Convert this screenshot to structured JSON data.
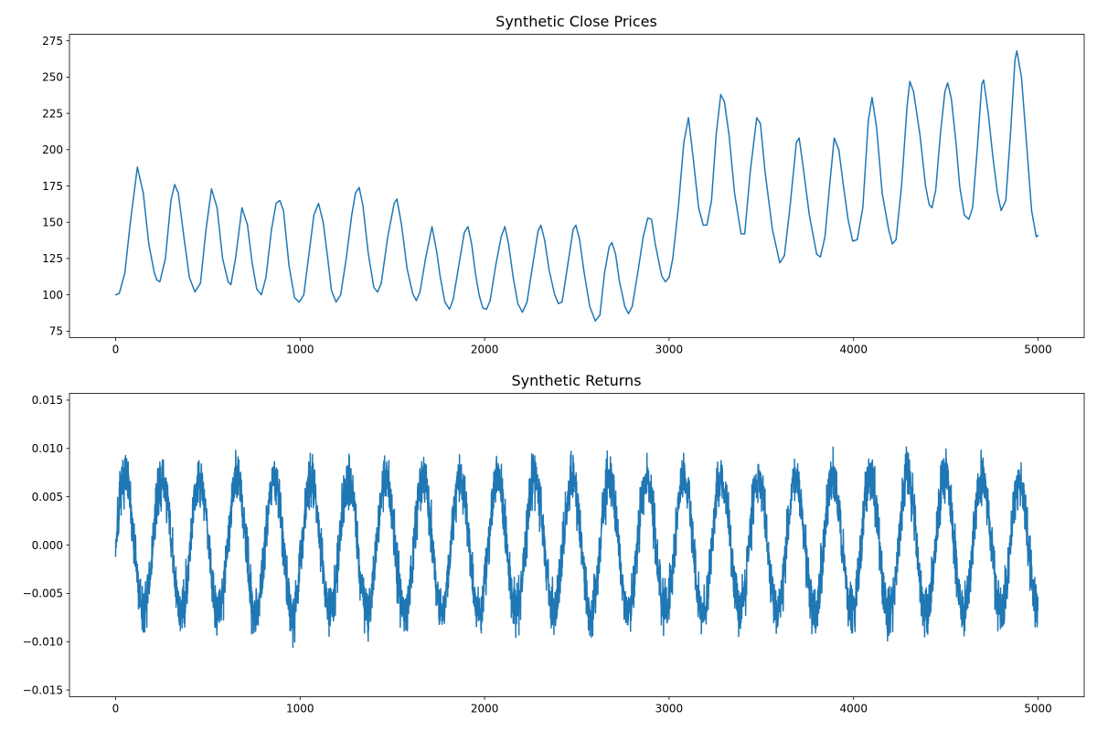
{
  "chart_data": [
    {
      "type": "line",
      "title": "Synthetic Close Prices",
      "xlabel": "",
      "ylabel": "",
      "xlim": [
        -250,
        5250
      ],
      "ylim": [
        70.5,
        279.5
      ],
      "xticks": [
        0,
        1000,
        2000,
        3000,
        4000,
        5000
      ],
      "yticks": [
        75,
        100,
        125,
        150,
        175,
        200,
        225,
        250,
        275
      ],
      "grid": false,
      "series": [
        {
          "color": "#1f77b4",
          "points": [
            [
              0,
              100
            ],
            [
              20,
              101
            ],
            [
              50,
              115
            ],
            [
              80,
              150
            ],
            [
              118,
              188
            ],
            [
              150,
              170
            ],
            [
              180,
              135
            ],
            [
              210,
              115
            ],
            [
              225,
              110
            ],
            [
              240,
              109
            ],
            [
              270,
              125
            ],
            [
              300,
              165
            ],
            [
              320,
              176
            ],
            [
              340,
              170
            ],
            [
              370,
              140
            ],
            [
              400,
              112
            ],
            [
              430,
              102
            ],
            [
              460,
              108
            ],
            [
              490,
              145
            ],
            [
              520,
              173
            ],
            [
              550,
              160
            ],
            [
              580,
              125
            ],
            [
              610,
              109
            ],
            [
              625,
              107
            ],
            [
              650,
              125
            ],
            [
              685,
              160
            ],
            [
              715,
              148
            ],
            [
              740,
              122
            ],
            [
              765,
              104
            ],
            [
              790,
              100
            ],
            [
              815,
              112
            ],
            [
              845,
              145
            ],
            [
              870,
              163
            ],
            [
              890,
              165
            ],
            [
              910,
              158
            ],
            [
              940,
              120
            ],
            [
              970,
              98
            ],
            [
              995,
              95
            ],
            [
              1020,
              100
            ],
            [
              1050,
              130
            ],
            [
              1075,
              155
            ],
            [
              1100,
              163
            ],
            [
              1125,
              150
            ],
            [
              1150,
              125
            ],
            [
              1170,
              103
            ],
            [
              1195,
              95
            ],
            [
              1220,
              100
            ],
            [
              1250,
              125
            ],
            [
              1280,
              155
            ],
            [
              1300,
              170
            ],
            [
              1320,
              174
            ],
            [
              1340,
              162
            ],
            [
              1370,
              128
            ],
            [
              1400,
              105
            ],
            [
              1420,
              102
            ],
            [
              1440,
              108
            ],
            [
              1475,
              140
            ],
            [
              1510,
              163
            ],
            [
              1525,
              166
            ],
            [
              1550,
              148
            ],
            [
              1580,
              118
            ],
            [
              1610,
              101
            ],
            [
              1630,
              96
            ],
            [
              1650,
              102
            ],
            [
              1680,
              125
            ],
            [
              1715,
              147
            ],
            [
              1740,
              130
            ],
            [
              1760,
              112
            ],
            [
              1785,
              95
            ],
            [
              1810,
              90
            ],
            [
              1830,
              97
            ],
            [
              1860,
              120
            ],
            [
              1890,
              143
            ],
            [
              1910,
              147
            ],
            [
              1930,
              135
            ],
            [
              1950,
              115
            ],
            [
              1970,
              100
            ],
            [
              1990,
              91
            ],
            [
              2010,
              90
            ],
            [
              2030,
              96
            ],
            [
              2060,
              120
            ],
            [
              2090,
              140
            ],
            [
              2110,
              147
            ],
            [
              2130,
              135
            ],
            [
              2155,
              112
            ],
            [
              2180,
              94
            ],
            [
              2205,
              88
            ],
            [
              2230,
              95
            ],
            [
              2260,
              120
            ],
            [
              2290,
              144
            ],
            [
              2305,
              148
            ],
            [
              2325,
              138
            ],
            [
              2350,
              117
            ],
            [
              2380,
              100
            ],
            [
              2400,
              94
            ],
            [
              2420,
              95
            ],
            [
              2450,
              120
            ],
            [
              2480,
              145
            ],
            [
              2495,
              148
            ],
            [
              2515,
              138
            ],
            [
              2540,
              115
            ],
            [
              2570,
              92
            ],
            [
              2600,
              82
            ],
            [
              2625,
              86
            ],
            [
              2650,
              115
            ],
            [
              2675,
              133
            ],
            [
              2690,
              136
            ],
            [
              2710,
              128
            ],
            [
              2730,
              110
            ],
            [
              2760,
              92
            ],
            [
              2780,
              87
            ],
            [
              2800,
              92
            ],
            [
              2830,
              115
            ],
            [
              2860,
              140
            ],
            [
              2885,
              153
            ],
            [
              2905,
              152
            ],
            [
              2925,
              135
            ],
            [
              2960,
              113
            ],
            [
              2980,
              109
            ],
            [
              3000,
              112
            ],
            [
              3020,
              125
            ],
            [
              3050,
              160
            ],
            [
              3080,
              205
            ],
            [
              3105,
              222
            ],
            [
              3130,
              195
            ],
            [
              3160,
              160
            ],
            [
              3185,
              148
            ],
            [
              3205,
              148
            ],
            [
              3230,
              165
            ],
            [
              3255,
              210
            ],
            [
              3280,
              238
            ],
            [
              3300,
              233
            ],
            [
              3325,
              210
            ],
            [
              3355,
              170
            ],
            [
              3390,
              142
            ],
            [
              3410,
              142
            ],
            [
              3440,
              185
            ],
            [
              3475,
              222
            ],
            [
              3495,
              218
            ],
            [
              3520,
              185
            ],
            [
              3560,
              145
            ],
            [
              3600,
              122
            ],
            [
              3625,
              127
            ],
            [
              3655,
              160
            ],
            [
              3690,
              205
            ],
            [
              3705,
              208
            ],
            [
              3730,
              185
            ],
            [
              3760,
              155
            ],
            [
              3800,
              128
            ],
            [
              3820,
              126
            ],
            [
              3845,
              140
            ],
            [
              3870,
              175
            ],
            [
              3895,
              208
            ],
            [
              3920,
              200
            ],
            [
              3945,
              175
            ],
            [
              3970,
              152
            ],
            [
              3995,
              137
            ],
            [
              4020,
              138
            ],
            [
              4050,
              160
            ],
            [
              4080,
              220
            ],
            [
              4100,
              236
            ],
            [
              4125,
              215
            ],
            [
              4155,
              170
            ],
            [
              4190,
              145
            ],
            [
              4210,
              135
            ],
            [
              4230,
              138
            ],
            [
              4260,
              175
            ],
            [
              4290,
              230
            ],
            [
              4305,
              247
            ],
            [
              4325,
              240
            ],
            [
              4360,
              210
            ],
            [
              4390,
              175
            ],
            [
              4410,
              162
            ],
            [
              4425,
              160
            ],
            [
              4445,
              172
            ],
            [
              4470,
              210
            ],
            [
              4495,
              240
            ],
            [
              4510,
              246
            ],
            [
              4530,
              235
            ],
            [
              4555,
              205
            ],
            [
              4575,
              175
            ],
            [
              4600,
              155
            ],
            [
              4625,
              152
            ],
            [
              4645,
              160
            ],
            [
              4670,
              200
            ],
            [
              4695,
              245
            ],
            [
              4705,
              248
            ],
            [
              4730,
              225
            ],
            [
              4755,
              195
            ],
            [
              4780,
              170
            ],
            [
              4800,
              158
            ],
            [
              4825,
              165
            ],
            [
              4850,
              210
            ],
            [
              4875,
              262
            ],
            [
              4885,
              268
            ],
            [
              4910,
              250
            ],
            [
              4940,
              200
            ],
            [
              4965,
              158
            ],
            [
              4990,
              140
            ],
            [
              5000,
              141
            ]
          ]
        }
      ]
    },
    {
      "type": "line",
      "title": "Synthetic Returns",
      "xlabel": "",
      "ylabel": "",
      "xlim": [
        -250,
        5250
      ],
      "ylim": [
        -0.0157,
        0.0157
      ],
      "xticks": [
        0,
        1000,
        2000,
        3000,
        4000,
        5000
      ],
      "yticks": [
        -0.015,
        -0.01,
        -0.005,
        0.0,
        0.005,
        0.01,
        0.015
      ],
      "grid": false,
      "signal": {
        "n": 5000,
        "amplitude": 0.0069,
        "period": 202,
        "phase_x": 0,
        "noise": 0.0026,
        "seed": 7
      },
      "series": [
        {
          "color": "#1f77b4"
        }
      ]
    }
  ]
}
